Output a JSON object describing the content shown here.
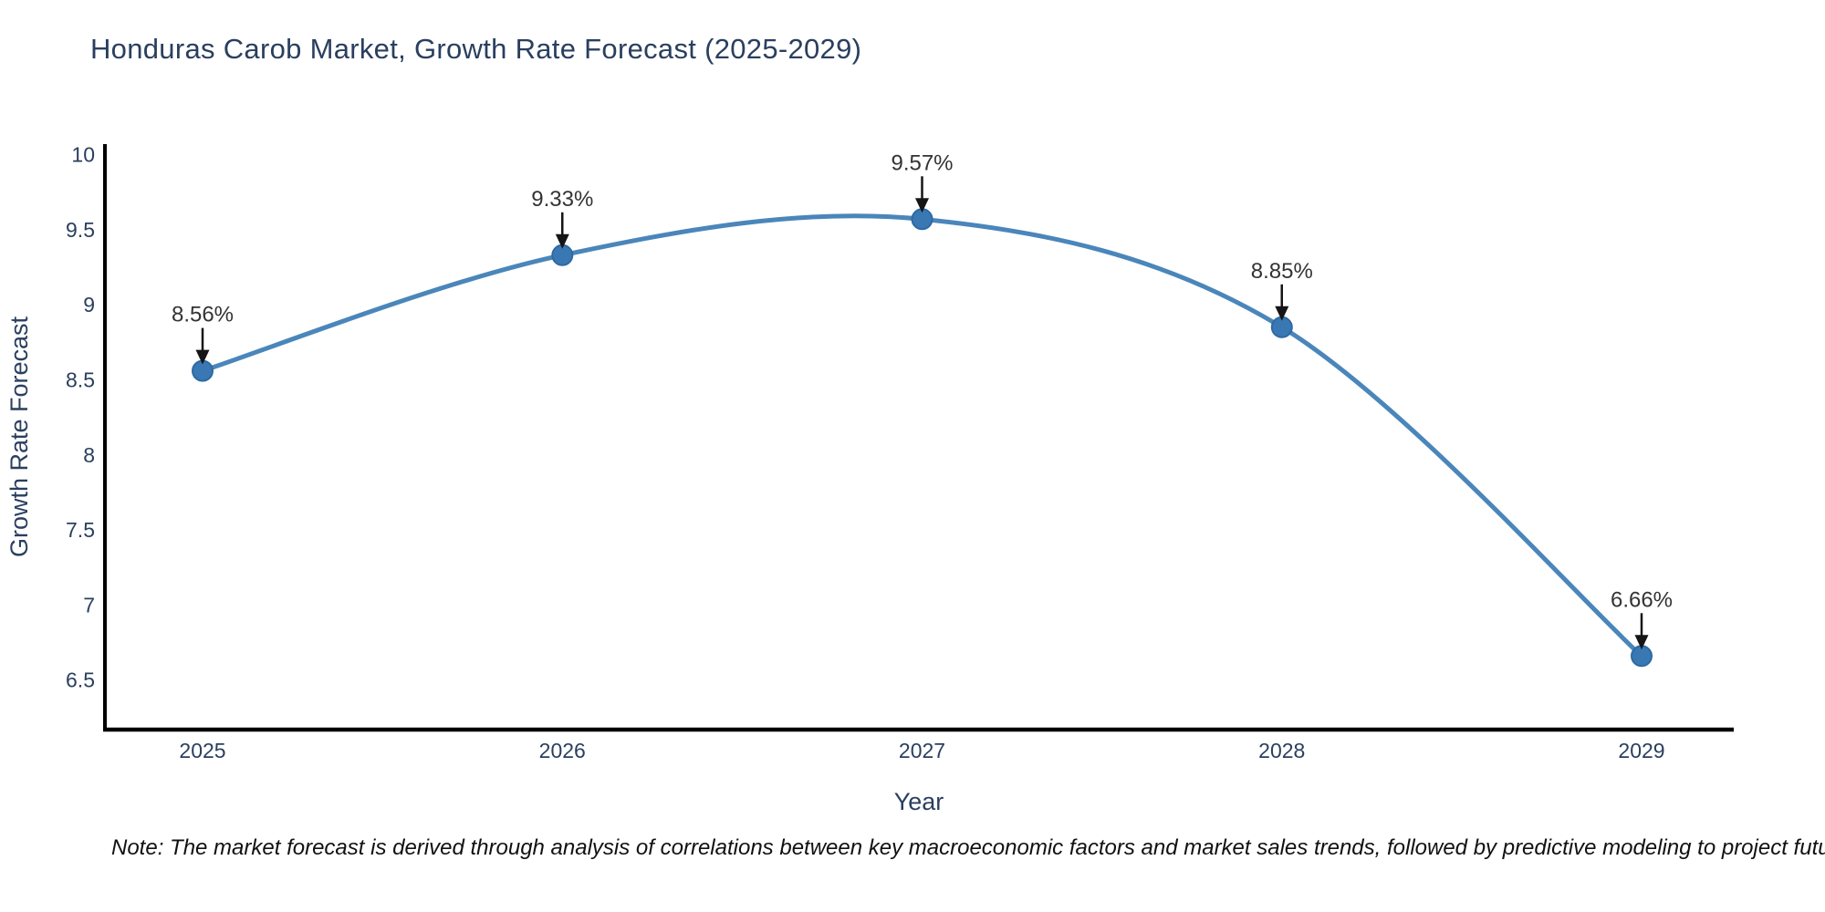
{
  "title": "Honduras Carob Market, Growth Rate Forecast (2025-2029)",
  "note": "Note: The market forecast is derived through analysis of correlations between key macroeconomic factors and market sales trends, followed by predictive modeling to project future sales",
  "chart_data": {
    "type": "line",
    "title": "Honduras Carob Market, Growth Rate Forecast (2025-2029)",
    "xlabel": "Year",
    "ylabel": "Growth Rate Forecast",
    "categories": [
      "2025",
      "2026",
      "2027",
      "2028",
      "2029"
    ],
    "series": [
      {
        "name": "Growth Rate Forecast",
        "values": [
          8.56,
          9.33,
          9.57,
          8.85,
          6.66
        ]
      }
    ],
    "point_labels": [
      "8.56%",
      "9.33%",
      "9.57%",
      "8.85%",
      "6.66%"
    ],
    "yticks": [
      6.5,
      7,
      7.5,
      8,
      8.5,
      9,
      9.5,
      10
    ],
    "ylim": [
      6.17,
      10.07
    ],
    "line_shape": "spline",
    "grid": false,
    "legend": "none",
    "annotations_style": "value label above point with downward black arrow",
    "colors": {
      "line": "#4a86ba",
      "marker": "#3a78b4",
      "marker_edge": "#2d6aa3",
      "arrow": "#151515",
      "text": "#2a3f5f",
      "annotation_text": "#333333",
      "axis": "#000000",
      "note_text": "#111111",
      "background": "#ffffff"
    }
  }
}
